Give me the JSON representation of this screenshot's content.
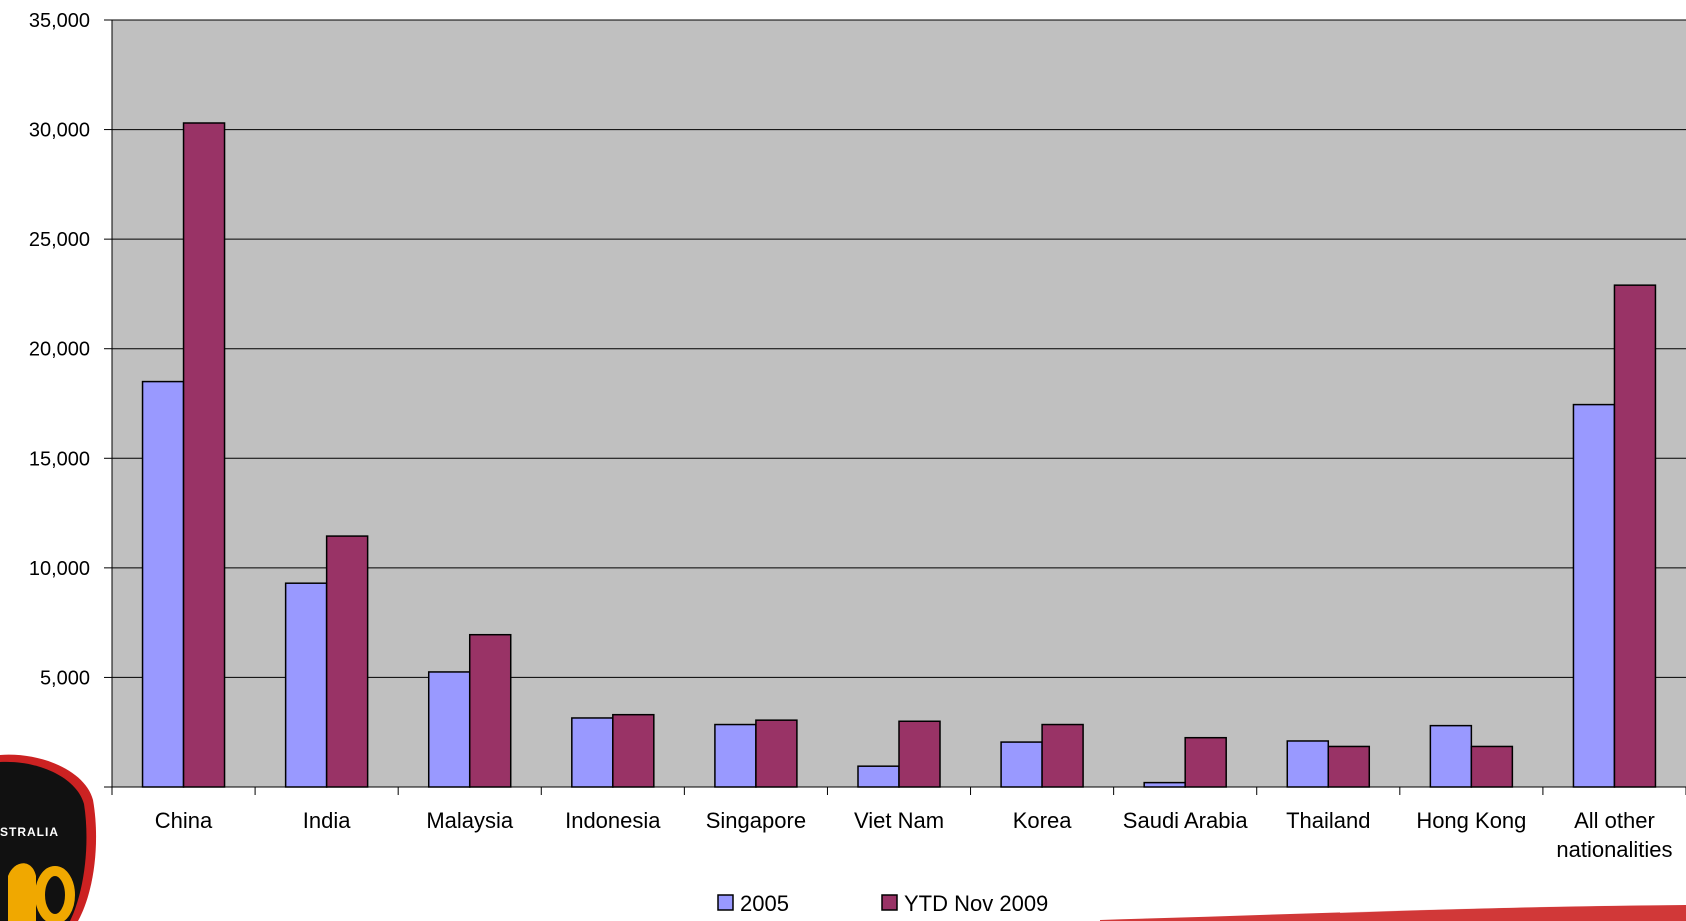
{
  "chart_data": {
    "type": "bar",
    "categories": [
      [
        "China"
      ],
      [
        "India"
      ],
      [
        "Malaysia"
      ],
      [
        "Indonesia"
      ],
      [
        "Singapore"
      ],
      [
        "Viet Nam"
      ],
      [
        "Korea"
      ],
      [
        "Saudi Arabia"
      ],
      [
        "Thailand"
      ],
      [
        "Hong Kong"
      ],
      [
        "All other",
        "nationalities"
      ]
    ],
    "series": [
      {
        "name": "2005",
        "color": "#9999ff",
        "values": [
          18500,
          9300,
          5250,
          3150,
          2850,
          950,
          2050,
          200,
          2100,
          2800,
          17450
        ]
      },
      {
        "name": "YTD Nov 2009",
        "color": "#993366",
        "values": [
          30300,
          11450,
          6950,
          3300,
          3050,
          3000,
          2850,
          2250,
          1850,
          1850,
          22900
        ]
      }
    ],
    "yticks": [
      "35,000",
      "30,000",
      "25,000",
      "20,000",
      "15,000",
      "10,000",
      "5,000"
    ],
    "ylim": [
      0,
      35000
    ],
    "plot_background": "#c0c0c0",
    "grid": true,
    "legend_position": "bottom-center",
    "logo_text": "STRALIA"
  }
}
